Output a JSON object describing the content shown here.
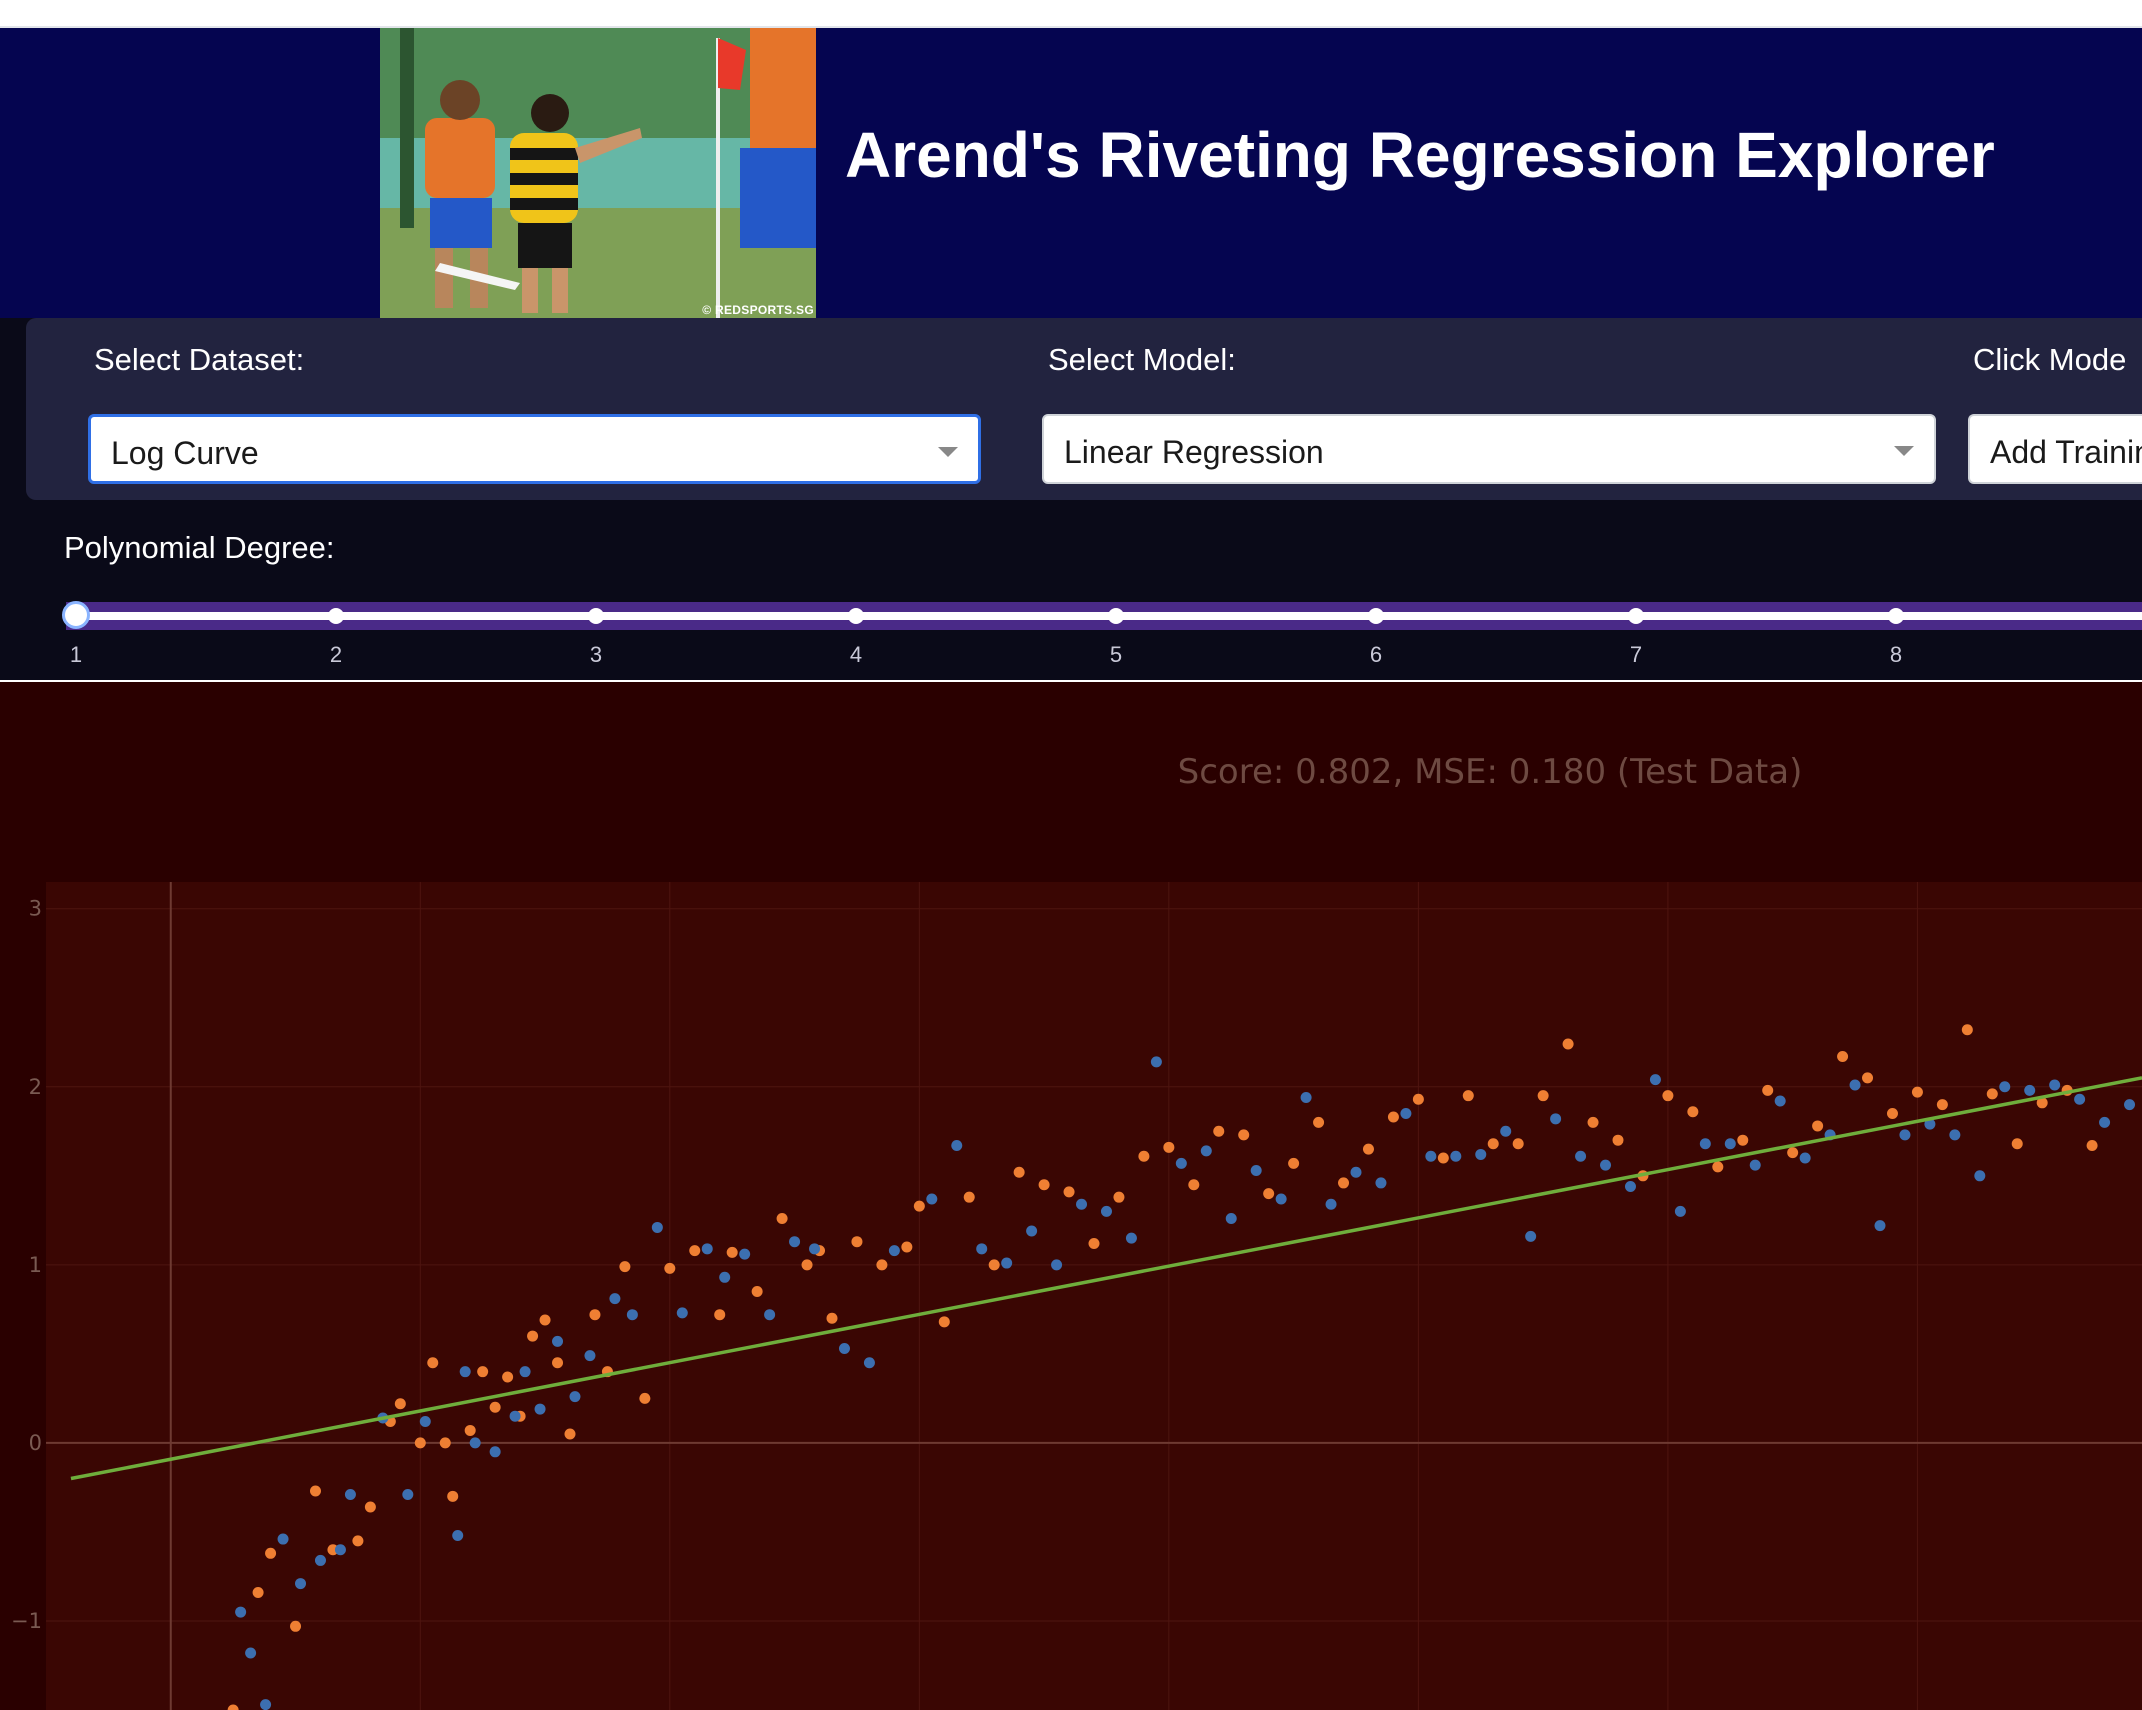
{
  "header": {
    "title": "Arend's Riveting Regression Explorer",
    "photo_credit": "© REDSPORTS.SG"
  },
  "controls": {
    "dataset_label": "Select Dataset:",
    "dataset_value": "Log Curve",
    "model_label": "Select Model:",
    "model_value": "Linear Regression",
    "click_mode_label": "Click Mode",
    "click_mode_value": "Add Trainin",
    "degree_label": "Polynomial Degree:",
    "degree_value": 1,
    "degree_marks": [
      "1",
      "2",
      "3",
      "4",
      "5",
      "6",
      "7",
      "8"
    ]
  },
  "colors": {
    "header_bg": "#050550",
    "plot_bg": "#3a0603",
    "train_points": "#ef7f33",
    "test_points": "#3c6fb0",
    "fit_line": "#6fae3c"
  },
  "chart_data": {
    "type": "scatter",
    "title": "Score: 0.802, MSE: 0.180 (Test Data)",
    "xlabel": "",
    "ylabel": "",
    "xlim": [
      -0.5,
      7.9
    ],
    "ylim": [
      -1.5,
      3.15
    ],
    "y_ticks": [
      3,
      2,
      1,
      0,
      -1
    ],
    "grid": true,
    "fit_line": {
      "x": [
        -0.4,
        7.9
      ],
      "y": [
        -0.2,
        2.05
      ]
    },
    "series": [
      {
        "x": [
          0.25,
          0.35,
          0.4,
          0.5,
          0.58,
          0.65,
          0.75,
          0.8,
          0.88,
          0.92,
          1.0,
          1.05,
          1.1,
          1.13,
          1.2,
          1.25,
          1.3,
          1.35,
          1.4,
          1.45,
          1.5,
          1.55,
          1.6,
          1.7,
          1.75,
          1.82,
          1.9,
          2.0,
          2.1,
          2.2,
          2.25,
          2.35,
          2.45,
          2.55,
          2.6,
          2.65,
          2.75,
          2.85,
          2.95,
          3.0,
          3.1,
          3.2,
          3.3,
          3.4,
          3.5,
          3.6,
          3.7,
          3.8,
          3.9,
          4.0,
          4.1,
          4.2,
          4.3,
          4.4,
          4.5,
          4.6,
          4.7,
          4.8,
          4.9,
          5.0,
          5.1,
          5.2,
          5.3,
          5.4,
          5.5,
          5.6,
          5.7,
          5.8,
          5.9,
          6.0,
          6.1,
          6.2,
          6.3,
          6.4,
          6.5,
          6.6,
          6.7,
          6.8,
          6.9,
          7.0,
          7.1,
          7.2,
          7.3,
          7.4,
          7.5,
          7.6,
          7.7
        ],
        "y": [
          -1.5,
          -0.84,
          -0.62,
          -1.03,
          -0.27,
          -0.6,
          -0.55,
          -0.36,
          0.12,
          0.22,
          0.0,
          0.45,
          0.0,
          -0.3,
          0.07,
          0.4,
          0.2,
          0.37,
          0.15,
          0.6,
          0.69,
          0.45,
          0.05,
          0.72,
          0.4,
          0.99,
          0.25,
          0.98,
          1.08,
          0.72,
          1.07,
          0.85,
          1.26,
          1.0,
          1.08,
          0.7,
          1.13,
          1.0,
          1.1,
          1.33,
          0.68,
          1.38,
          1.0,
          1.52,
          1.45,
          1.41,
          1.12,
          1.38,
          1.61,
          1.66,
          1.45,
          1.75,
          1.73,
          1.4,
          1.57,
          1.8,
          1.46,
          1.65,
          1.83,
          1.93,
          1.6,
          1.95,
          1.68,
          1.68,
          1.95,
          2.24,
          1.8,
          1.7,
          1.5,
          1.95,
          1.86,
          1.55,
          1.7,
          1.98,
          1.63,
          1.78,
          2.17,
          2.05,
          1.85,
          1.97,
          1.9,
          2.32,
          1.96,
          1.68,
          1.91,
          1.98,
          1.67
        ]
      },
      {
        "x": [
          0.28,
          0.32,
          0.38,
          0.45,
          0.52,
          0.6,
          0.68,
          0.72,
          0.85,
          0.95,
          1.02,
          1.15,
          1.18,
          1.22,
          1.3,
          1.38,
          1.42,
          1.48,
          1.55,
          1.62,
          1.68,
          1.78,
          1.85,
          1.95,
          2.05,
          2.15,
          2.22,
          2.3,
          2.4,
          2.5,
          2.58,
          2.7,
          2.8,
          2.9,
          3.05,
          3.15,
          3.25,
          3.35,
          3.45,
          3.55,
          3.65,
          3.75,
          3.85,
          3.95,
          4.05,
          4.15,
          4.25,
          4.35,
          4.45,
          4.55,
          4.65,
          4.75,
          4.85,
          4.95,
          5.05,
          5.15,
          5.25,
          5.35,
          5.45,
          5.55,
          5.65,
          5.75,
          5.85,
          5.95,
          6.05,
          6.15,
          6.25,
          6.35,
          6.45,
          6.55,
          6.65,
          6.75,
          6.85,
          6.95,
          7.05,
          7.15,
          7.25,
          7.35,
          7.45,
          7.55,
          7.65,
          7.75,
          7.85,
          7.95
        ],
        "y": [
          -0.95,
          -1.18,
          -1.47,
          -0.54,
          -0.79,
          -0.66,
          -0.6,
          -0.29,
          0.14,
          -0.29,
          0.12,
          -0.52,
          0.4,
          0.0,
          -0.05,
          0.15,
          0.4,
          0.19,
          0.57,
          0.26,
          0.49,
          0.81,
          0.72,
          1.21,
          0.73,
          1.09,
          0.93,
          1.06,
          0.72,
          1.13,
          1.09,
          0.53,
          0.45,
          1.08,
          1.37,
          1.67,
          1.09,
          1.01,
          1.19,
          1.0,
          1.34,
          1.3,
          1.15,
          2.14,
          1.57,
          1.64,
          1.26,
          1.53,
          1.37,
          1.94,
          1.34,
          1.52,
          1.46,
          1.85,
          1.61,
          1.61,
          1.62,
          1.75,
          1.16,
          1.82,
          1.61,
          1.56,
          1.44,
          2.04,
          1.3,
          1.68,
          1.68,
          1.56,
          1.92,
          1.6,
          1.73,
          2.01,
          1.22,
          1.73,
          1.79,
          1.73,
          1.5,
          2.0,
          1.98,
          2.01,
          1.93,
          1.8,
          1.9,
          2.31
        ]
      }
    ]
  }
}
